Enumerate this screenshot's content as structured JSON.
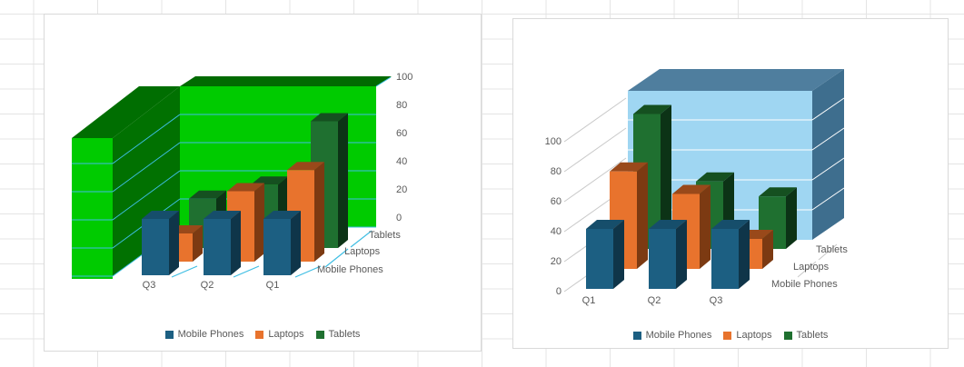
{
  "sheet": {
    "background": "#FFFFFF",
    "gridline_color": "#E4E4E4",
    "card_border_color": "#D9D9D9"
  },
  "chart_data": [
    {
      "type": "bar",
      "projection": "3d-column",
      "title": "",
      "categories": [
        "Q1",
        "Q2",
        "Q3"
      ],
      "category_display_order": [
        "Q3",
        "Q2",
        "Q1"
      ],
      "series": [
        {
          "name": "Mobile Phones",
          "values": [
            40,
            40,
            40
          ],
          "color": "#1C5F82",
          "color_top": "#164E6B",
          "color_side": "#0F3549"
        },
        {
          "name": "Laptops",
          "values": [
            65,
            50,
            20
          ],
          "color": "#E8732D",
          "color_top": "#99491A",
          "color_side": "#7C3A12"
        },
        {
          "name": "Tablets",
          "values": [
            90,
            45,
            35
          ],
          "color": "#1F7030",
          "color_top": "#155020",
          "color_side": "#0C3316"
        }
      ],
      "ylim": [
        0,
        100
      ],
      "ytick_step": 20,
      "ytick_labels": [
        "100",
        "80",
        "60",
        "40",
        "20",
        "0"
      ],
      "value_axis_side": "right",
      "depth_axis_labels": [
        "Tablets",
        "Laptops",
        "Mobile Phones"
      ],
      "walls": {
        "front": "#00CB00",
        "side_inner": "#017101",
        "side_top": "#006E01",
        "top_band": "#016A01"
      },
      "gridline_color": "#3FBEE3",
      "leader_color": "#3FBEE3",
      "axis_text_color": "#595959",
      "legend_position": "bottom",
      "grid": true
    },
    {
      "type": "bar",
      "projection": "3d-column",
      "title": "",
      "categories": [
        "Q1",
        "Q2",
        "Q3"
      ],
      "category_display_order": [
        "Q1",
        "Q2",
        "Q3"
      ],
      "series": [
        {
          "name": "Mobile Phones",
          "values": [
            40,
            40,
            40
          ],
          "color": "#1C5F82",
          "color_top": "#164E6B",
          "color_side": "#0F3549"
        },
        {
          "name": "Laptops",
          "values": [
            65,
            50,
            20
          ],
          "color": "#E8732D",
          "color_top": "#99491A",
          "color_side": "#7C3A12"
        },
        {
          "name": "Tablets",
          "values": [
            90,
            45,
            35
          ],
          "color": "#1F7030",
          "color_top": "#155020",
          "color_side": "#0C3316"
        }
      ],
      "ylim": [
        0,
        100
      ],
      "ytick_step": 20,
      "ytick_labels": [
        "100",
        "80",
        "60",
        "40",
        "20",
        "0"
      ],
      "value_axis_side": "left",
      "depth_axis_labels": [
        "Tablets",
        "Laptops",
        "Mobile Phones"
      ],
      "walls": {
        "front": "#9FD6F2",
        "top": "#4F7E9E",
        "side": "#3E6E8E"
      },
      "gridline_color": "#FFFFFF",
      "leader_color": "#C9C9C9",
      "axis_text_color": "#595959",
      "legend_position": "bottom",
      "grid": true
    }
  ]
}
